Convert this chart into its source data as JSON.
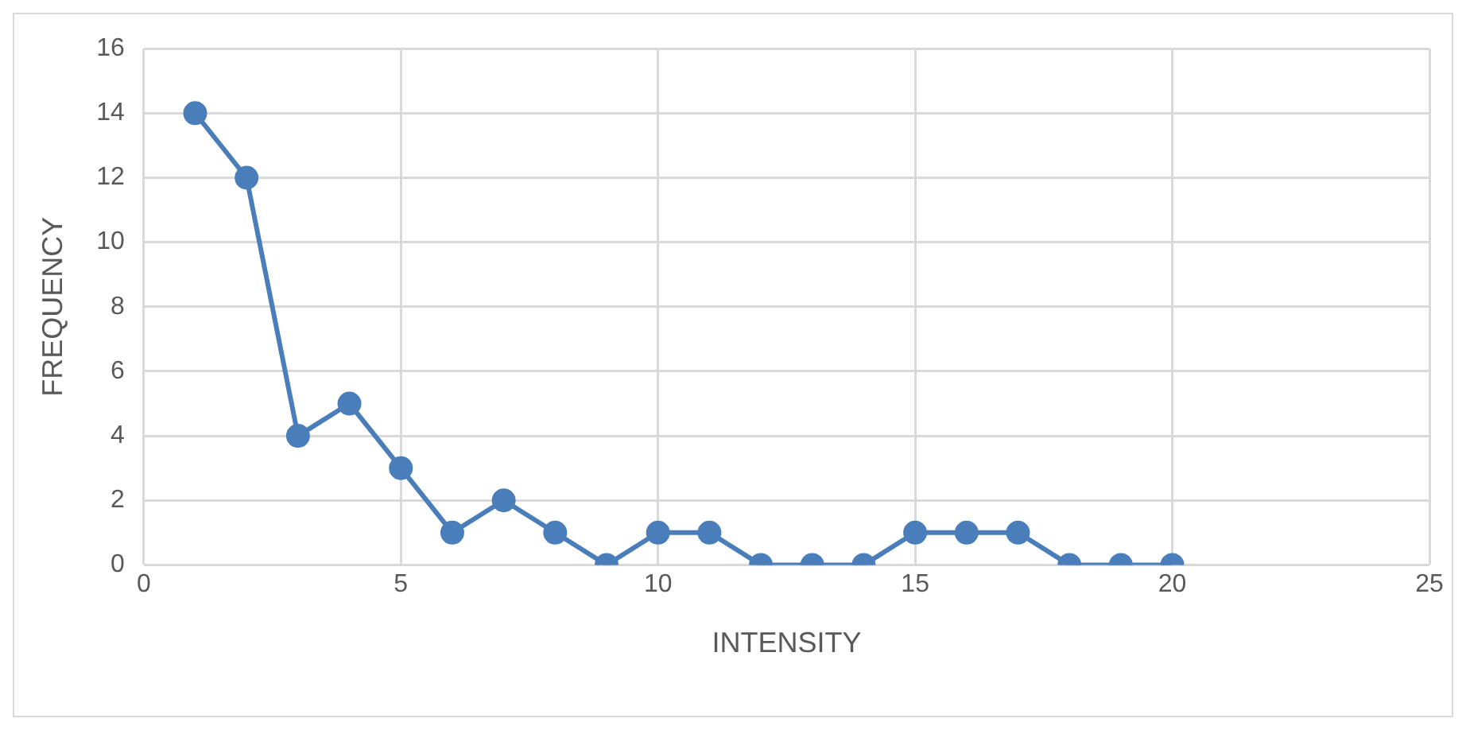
{
  "chart_data": {
    "type": "line",
    "xlabel": "INTENSITY",
    "ylabel": "FREQUENCY",
    "x": [
      1,
      2,
      3,
      4,
      5,
      6,
      7,
      8,
      9,
      10,
      11,
      12,
      13,
      14,
      15,
      16,
      17,
      18,
      19,
      20
    ],
    "series": [
      {
        "color": "#4a7ebb",
        "values": [
          14,
          12,
          4,
          5,
          3,
          1,
          2,
          1,
          0,
          1,
          1,
          0,
          0,
          0,
          1,
          1,
          1,
          0,
          0,
          0
        ]
      }
    ],
    "xlim": [
      0,
      25
    ],
    "xticks": [
      0,
      5,
      10,
      15,
      20,
      25
    ],
    "ylim": [
      0,
      16
    ],
    "yticks": [
      0,
      2,
      4,
      6,
      8,
      10,
      12,
      14,
      16
    ],
    "grid": true,
    "marker": "circle",
    "line_style": "solid",
    "legend": false
  }
}
